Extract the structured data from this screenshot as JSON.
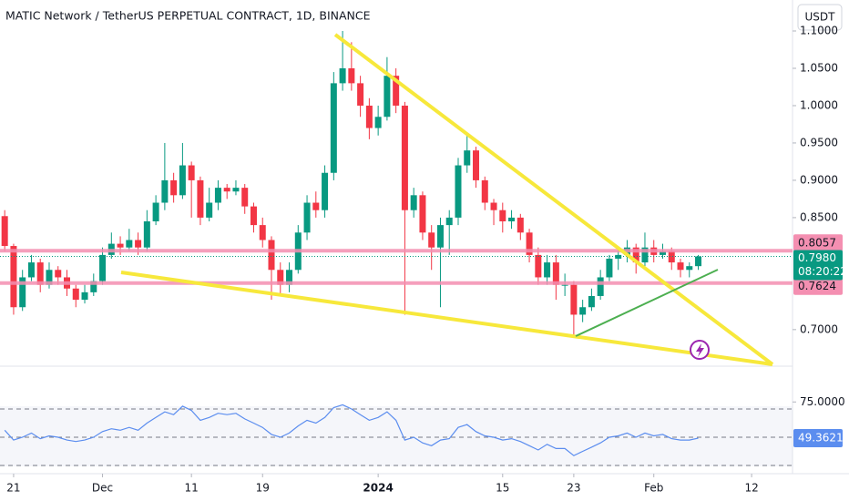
{
  "header": {
    "title": "MATIC Network / TetherUS PERPETUAL CONTRACT, 1D, BINANCE",
    "currency": "USDT"
  },
  "chart_data": [
    {
      "type": "candlestick",
      "xlim": [
        -0.53,
        88.6
      ],
      "xticks": [
        {
          "value": 1,
          "label": "21"
        },
        {
          "value": 11,
          "label": "Dec"
        },
        {
          "value": 21,
          "label": "11"
        },
        {
          "value": 29,
          "label": "19"
        },
        {
          "value": 42,
          "label": "2024"
        },
        {
          "value": 56,
          "label": "15"
        },
        {
          "value": 64,
          "label": "23"
        },
        {
          "value": 73,
          "label": "Feb"
        },
        {
          "value": 84,
          "label": "12"
        }
      ],
      "ylim": [
        0.651,
        1.1415
      ],
      "yticks": [
        {
          "value": 1.1,
          "label": "1.1000"
        },
        {
          "value": 1.05,
          "label": "1.0500"
        },
        {
          "value": 1,
          "label": "1.0000"
        },
        {
          "value": 0.95,
          "label": "0.9500"
        },
        {
          "value": 0.9,
          "label": "0.9000"
        },
        {
          "value": 0.85,
          "label": "0.8500"
        },
        {
          "value": 0.7,
          "label": "0.7000"
        }
      ],
      "up_color": "#089981",
      "down_color": "#f23645",
      "open": [
        0.852,
        0.812,
        0.73,
        0.77,
        0.79,
        0.76,
        0.78,
        0.77,
        0.755,
        0.74,
        0.75,
        0.765,
        0.8,
        0.815,
        0.81,
        0.82,
        0.81,
        0.845,
        0.87,
        0.9,
        0.88,
        0.92,
        0.9,
        0.85,
        0.87,
        0.89,
        0.885,
        0.89,
        0.865,
        0.84,
        0.82,
        0.78,
        0.76,
        0.78,
        0.83,
        0.87,
        0.86,
        0.91,
        1.03,
        1.05,
        1.03,
        1.0,
        0.97,
        0.985,
        1.04,
        1.0,
        0.86,
        0.88,
        0.83,
        0.81,
        0.84,
        0.85,
        0.92,
        0.94,
        0.9,
        0.87,
        0.86,
        0.845,
        0.85,
        0.83,
        0.8,
        0.77,
        0.79,
        0.76,
        0.76,
        0.72,
        0.73,
        0.745,
        0.77,
        0.795,
        0.8,
        0.81,
        0.79,
        0.81,
        0.8,
        0.805,
        0.79,
        0.78,
        0.785
      ],
      "high": [
        0.86,
        0.815,
        0.78,
        0.8,
        0.795,
        0.79,
        0.785,
        0.78,
        0.76,
        0.76,
        0.775,
        0.81,
        0.83,
        0.825,
        0.835,
        0.83,
        0.86,
        0.88,
        0.95,
        0.91,
        0.95,
        0.925,
        0.905,
        0.89,
        0.9,
        0.895,
        0.9,
        0.895,
        0.87,
        0.85,
        0.825,
        0.79,
        0.79,
        0.84,
        0.88,
        0.885,
        0.92,
        1.045,
        1.1,
        1.085,
        1.04,
        1.01,
        1.0,
        1.065,
        1.05,
        1.005,
        0.89,
        0.885,
        0.84,
        0.85,
        0.86,
        0.93,
        0.96,
        0.945,
        0.905,
        0.875,
        0.87,
        0.86,
        0.855,
        0.835,
        0.81,
        0.8,
        0.8,
        0.775,
        0.765,
        0.74,
        0.755,
        0.78,
        0.8,
        0.81,
        0.82,
        0.815,
        0.83,
        0.82,
        0.815,
        0.81,
        0.795,
        0.79,
        0.8
      ],
      "low": [
        0.805,
        0.72,
        0.725,
        0.765,
        0.75,
        0.755,
        0.76,
        0.745,
        0.73,
        0.735,
        0.745,
        0.76,
        0.795,
        0.8,
        0.805,
        0.8,
        0.805,
        0.84,
        0.86,
        0.87,
        0.875,
        0.85,
        0.84,
        0.845,
        0.86,
        0.875,
        0.88,
        0.855,
        0.83,
        0.81,
        0.74,
        0.745,
        0.75,
        0.775,
        0.82,
        0.85,
        0.85,
        0.9,
        1.02,
        1.02,
        0.985,
        0.955,
        0.96,
        0.98,
        0.99,
        0.72,
        0.85,
        0.82,
        0.78,
        0.73,
        0.8,
        0.84,
        0.91,
        0.89,
        0.86,
        0.84,
        0.83,
        0.835,
        0.82,
        0.79,
        0.76,
        0.76,
        0.74,
        0.745,
        0.69,
        0.71,
        0.725,
        0.74,
        0.765,
        0.78,
        0.79,
        0.775,
        0.785,
        0.79,
        0.795,
        0.78,
        0.77,
        0.77,
        0.78
      ],
      "close": [
        0.812,
        0.73,
        0.77,
        0.79,
        0.76,
        0.78,
        0.77,
        0.755,
        0.74,
        0.75,
        0.765,
        0.8,
        0.815,
        0.81,
        0.82,
        0.81,
        0.845,
        0.87,
        0.9,
        0.88,
        0.92,
        0.9,
        0.85,
        0.87,
        0.89,
        0.885,
        0.89,
        0.865,
        0.84,
        0.82,
        0.78,
        0.76,
        0.78,
        0.83,
        0.87,
        0.86,
        0.91,
        1.03,
        1.05,
        1.03,
        1.0,
        0.97,
        0.985,
        1.04,
        1.0,
        0.86,
        0.88,
        0.83,
        0.81,
        0.84,
        0.85,
        0.92,
        0.94,
        0.9,
        0.87,
        0.86,
        0.845,
        0.85,
        0.83,
        0.8,
        0.77,
        0.79,
        0.76,
        0.76,
        0.72,
        0.73,
        0.745,
        0.77,
        0.795,
        0.8,
        0.81,
        0.79,
        0.81,
        0.8,
        0.805,
        0.79,
        0.78,
        0.785,
        0.798
      ],
      "price_lines": [
        {
          "value": 0.8057,
          "label": "0.8057",
          "color": "#f48fb1"
        },
        {
          "value": 0.7624,
          "label": "0.7624",
          "color": "#f48fb1"
        }
      ],
      "last_price": {
        "value": 0.798,
        "label": "0.7980",
        "countdown": "08:20:22",
        "color": "#089981"
      }
    },
    {
      "type": "line",
      "ylim": [
        24.2,
        78.4
      ],
      "yticks": [
        {
          "value": 75,
          "label": "75.0000"
        }
      ],
      "levels": [
        70,
        50,
        30
      ],
      "color": "#5b8def",
      "values": [
        55,
        48,
        50,
        53,
        49,
        51,
        50,
        48,
        47,
        48,
        50,
        54,
        56,
        55,
        57,
        55,
        60,
        64,
        68,
        66,
        72,
        69,
        62,
        64,
        67,
        66,
        67,
        63,
        60,
        57,
        52,
        50,
        53,
        58,
        62,
        60,
        64,
        71,
        73,
        70,
        66,
        62,
        64,
        68,
        62,
        48,
        50,
        46,
        44,
        48,
        49,
        57,
        59,
        54,
        51,
        50,
        48,
        49,
        47,
        44,
        41,
        45,
        42,
        42,
        37,
        40,
        43,
        46,
        50,
        51,
        53,
        50,
        53,
        51,
        52,
        49,
        48,
        48,
        49.3621
      ],
      "last_label": "49.3621"
    }
  ]
}
